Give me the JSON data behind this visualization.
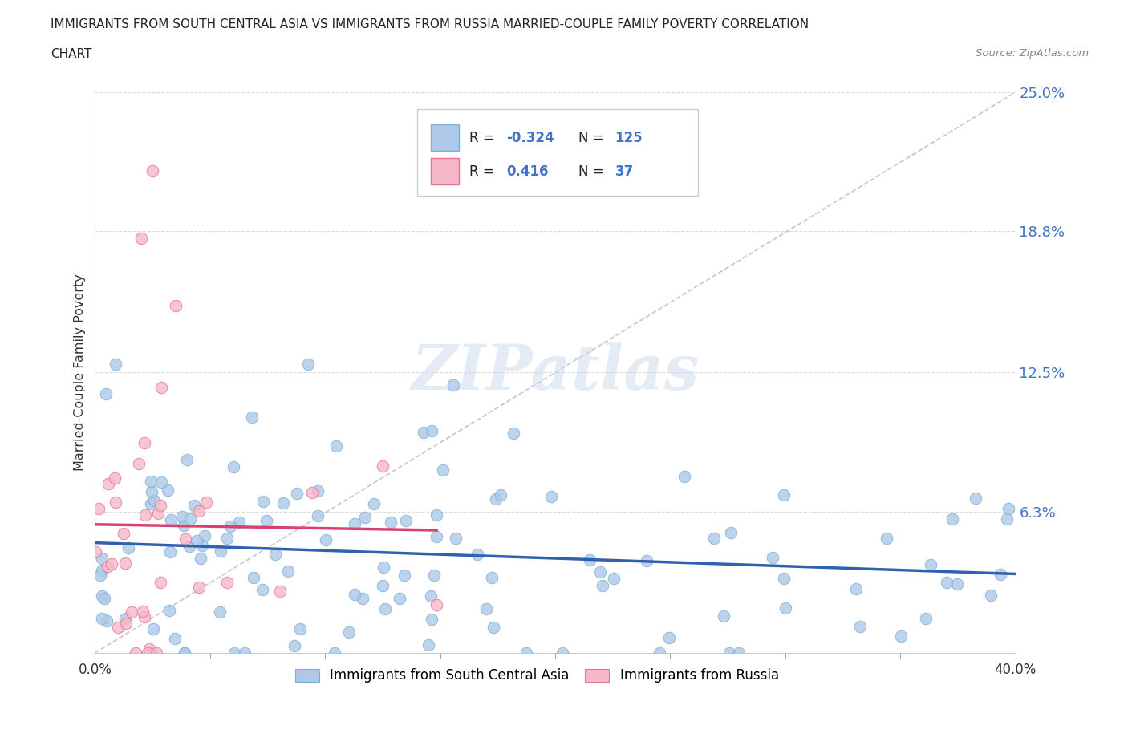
{
  "title_line1": "IMMIGRANTS FROM SOUTH CENTRAL ASIA VS IMMIGRANTS FROM RUSSIA MARRIED-COUPLE FAMILY POVERTY CORRELATION",
  "title_line2": "CHART",
  "source": "Source: ZipAtlas.com",
  "ylabel": "Married-Couple Family Poverty",
  "xmin": 0.0,
  "xmax": 0.4,
  "ymin": 0.0,
  "ymax": 0.25,
  "yticks": [
    0.0,
    0.063,
    0.125,
    0.188,
    0.25
  ],
  "ytick_labels": [
    "",
    "6.3%",
    "12.5%",
    "18.8%",
    "25.0%"
  ],
  "blue_color": "#adc8e8",
  "pink_color": "#f5b8c8",
  "blue_edge": "#7aafd4",
  "pink_edge": "#e87090",
  "blue_trend_color": "#3060b0",
  "pink_trend_color": "#d84070",
  "ref_line_color": "#b8b8b8",
  "blue_R": -0.324,
  "blue_N": 125,
  "pink_R": 0.416,
  "pink_N": 37,
  "legend_blue_label": "Immigrants from South Central Asia",
  "legend_pink_label": "Immigrants from Russia",
  "watermark_text": "ZIPatlas",
  "background_color": "#ffffff",
  "grid_color": "#cccccc",
  "tick_label_color": "#4472c4",
  "title_color": "#222222",
  "source_color": "#888888"
}
